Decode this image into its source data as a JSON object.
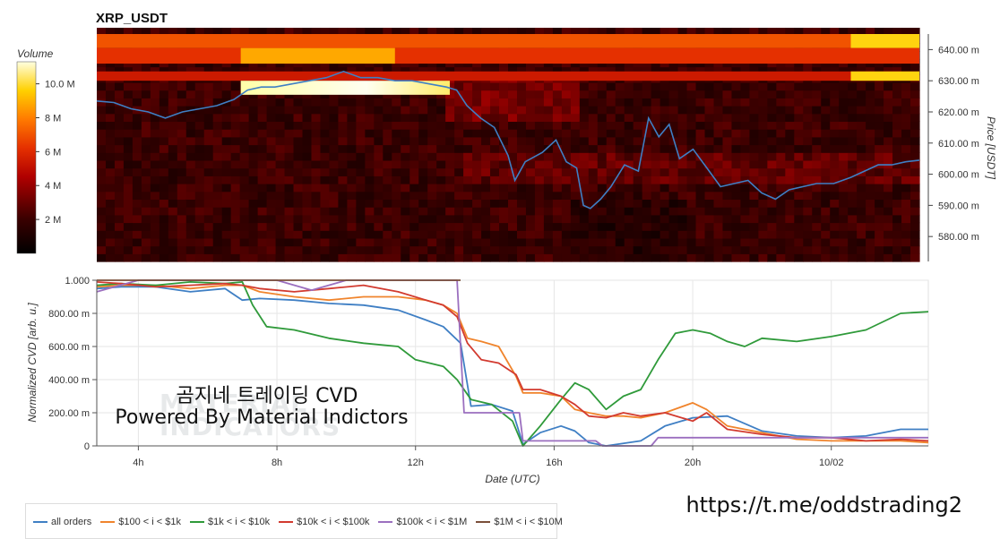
{
  "title": "XRP_USDT",
  "annotations": {
    "line1": "곰지네 트레이딩 CVD",
    "line2": "Powered By Material Indictors",
    "watermark": "MATERIAL\nINDICATORS",
    "url": "https://t.me/oddstrading2"
  },
  "chart_data": [
    {
      "type": "heatmap",
      "ylabel": "Price [USDT]",
      "ylim": [
        572,
        645
      ],
      "y_ticks": [
        "580.00 m",
        "590.00 m",
        "600.00 m",
        "610.00 m",
        "620.00 m",
        "630.00 m",
        "640.00 m"
      ],
      "y_tick_values": [
        580,
        590,
        600,
        610,
        620,
        630,
        640
      ],
      "colorbar": {
        "title": "Volume",
        "ticks": [
          "2 M",
          "4 M",
          "6 M",
          "8 M",
          "10.0 M"
        ],
        "tick_values": [
          2,
          4,
          6,
          8,
          10
        ],
        "range": [
          0,
          11.3
        ]
      },
      "x_hours_range": [
        2.8,
        26.8
      ],
      "price_line": {
        "color": "#3f7fc4",
        "x_hours": [
          2.8,
          3.3,
          3.8,
          4.3,
          4.8,
          5.3,
          5.8,
          6.3,
          6.8,
          7.2,
          7.6,
          8.0,
          8.5,
          9.0,
          9.5,
          10.0,
          10.5,
          11.0,
          11.5,
          12.0,
          12.5,
          13.0,
          13.3,
          13.6,
          14.0,
          14.4,
          14.8,
          15.0,
          15.3,
          15.8,
          16.2,
          16.5,
          16.8,
          17.0,
          17.2,
          17.5,
          17.8,
          18.2,
          18.6,
          18.9,
          19.2,
          19.5,
          19.8,
          20.2,
          20.6,
          21.0,
          21.4,
          21.8,
          22.2,
          22.6,
          23.0,
          23.4,
          23.8,
          24.3,
          24.8,
          25.2,
          25.6,
          26.0,
          26.4,
          26.8
        ],
        "values": [
          623.5,
          623,
          621,
          620,
          618,
          620,
          621,
          622,
          624,
          627,
          628,
          628,
          629,
          630,
          631,
          633,
          631,
          631,
          630,
          630,
          629,
          628,
          627,
          622,
          618,
          615,
          606,
          598,
          604,
          607,
          611,
          604,
          602,
          590,
          589,
          592,
          596,
          603,
          601,
          618,
          612,
          616,
          605,
          608,
          602,
          596,
          597,
          598,
          594,
          592,
          595,
          596,
          597,
          597,
          599,
          601,
          603,
          603,
          604,
          604.5
        ]
      },
      "bands": [
        {
          "price": [
            640.5,
            645
          ],
          "intensity": 0.62,
          "x_start_hours": 2.8,
          "x_end_hours": 26.8,
          "highlight_start_hours": 24.8,
          "highlight_intensity": 0.86
        },
        {
          "price": [
            635.5,
            640.5
          ],
          "intensity": 0.55,
          "x_start_hours": 2.8,
          "x_end_hours": 26.8,
          "highlight_start_hours": 7.0,
          "highlight_end_hours": 11.5,
          "highlight_intensity": 0.78
        },
        {
          "price": [
            630,
            633
          ],
          "intensity": 0.48,
          "x_start_hours": 2.8,
          "x_end_hours": 26.8,
          "highlight_start_hours": 24.8,
          "highlight_intensity": 0.86
        },
        {
          "price": [
            625.5,
            630
          ],
          "intensity": 0.96,
          "x_start_hours": 7.0,
          "x_end_hours": 13.1
        }
      ]
    },
    {
      "type": "line",
      "xlabel": "Date (UTC)",
      "ylabel": "Normalized CVD [arb. u.]",
      "ylim": [
        0,
        1
      ],
      "x_tick_labels": [
        "4h",
        "8h",
        "12h",
        "16h",
        "20h",
        "10/02"
      ],
      "x_tick_hours": [
        4,
        8,
        12,
        16,
        20,
        24
      ],
      "x_hours_range": [
        2.8,
        26.8
      ],
      "y_ticks": [
        "0",
        "200.00 m",
        "400.00 m",
        "600.00 m",
        "800.00 m",
        "1.000"
      ],
      "y_tick_values": [
        0,
        0.2,
        0.4,
        0.6,
        0.8,
        1.0
      ],
      "grid": true,
      "legend_position": "bottom-left",
      "series": [
        {
          "name": "all orders",
          "color": "#3f7fc4",
          "x_hours": [
            2.8,
            3.5,
            4.5,
            5.5,
            6.5,
            7.0,
            7.5,
            8.5,
            9.5,
            10.5,
            11.5,
            12.3,
            12.8,
            13.3,
            13.6,
            14.2,
            14.8,
            15.1,
            15.6,
            16.2,
            16.6,
            17.0,
            17.5,
            18.5,
            19.2,
            20.0,
            21.0,
            22.0,
            23.0,
            24.0,
            25.0,
            26.0,
            26.8
          ],
          "values": [
            0.95,
            0.96,
            0.96,
            0.93,
            0.95,
            0.88,
            0.89,
            0.88,
            0.86,
            0.85,
            0.82,
            0.76,
            0.72,
            0.62,
            0.24,
            0.25,
            0.21,
            0.01,
            0.08,
            0.12,
            0.09,
            0.02,
            0.0,
            0.03,
            0.12,
            0.17,
            0.18,
            0.09,
            0.06,
            0.05,
            0.06,
            0.1,
            0.1
          ]
        },
        {
          "name": "$100 < i < $1k",
          "color": "#f0842c",
          "x_hours": [
            2.8,
            3.5,
            4.5,
            5.5,
            6.5,
            7.0,
            7.5,
            8.5,
            9.5,
            10.5,
            11.5,
            12.3,
            12.8,
            13.2,
            13.5,
            13.9,
            14.4,
            14.9,
            15.1,
            15.6,
            16.2,
            16.6,
            17.0,
            17.5,
            18.0,
            18.5,
            19.2,
            20.0,
            20.4,
            21.0,
            22.0,
            23.0,
            24.0,
            25.0,
            26.0,
            26.8
          ],
          "values": [
            0.96,
            0.97,
            0.97,
            0.95,
            0.97,
            0.97,
            0.93,
            0.9,
            0.88,
            0.9,
            0.9,
            0.88,
            0.85,
            0.8,
            0.65,
            0.63,
            0.6,
            0.42,
            0.32,
            0.32,
            0.3,
            0.22,
            0.2,
            0.18,
            0.18,
            0.17,
            0.2,
            0.26,
            0.22,
            0.12,
            0.08,
            0.04,
            0.03,
            0.03,
            0.03,
            0.02
          ]
        },
        {
          "name": "$1k < i < $10k",
          "color": "#2f9a3a",
          "x_hours": [
            2.8,
            3.5,
            4.5,
            5.5,
            6.5,
            7.0,
            7.3,
            7.7,
            8.5,
            9.5,
            10.5,
            11.5,
            12.0,
            12.8,
            13.2,
            13.6,
            14.2,
            14.8,
            15.1,
            15.6,
            16.2,
            16.6,
            17.0,
            17.5,
            18.0,
            18.5,
            19.0,
            19.5,
            20.0,
            20.5,
            21.0,
            21.5,
            22.0,
            23.0,
            24.0,
            25.0,
            26.0,
            26.8
          ],
          "values": [
            0.97,
            0.98,
            0.97,
            0.99,
            0.98,
            0.99,
            0.85,
            0.72,
            0.7,
            0.65,
            0.62,
            0.6,
            0.52,
            0.48,
            0.4,
            0.28,
            0.25,
            0.15,
            0.0,
            0.12,
            0.28,
            0.38,
            0.34,
            0.22,
            0.3,
            0.34,
            0.52,
            0.68,
            0.7,
            0.68,
            0.63,
            0.6,
            0.65,
            0.63,
            0.66,
            0.7,
            0.8,
            0.81
          ]
        },
        {
          "name": "$10k < i < $100k",
          "color": "#d23a2f",
          "x_hours": [
            2.8,
            3.5,
            4.5,
            5.5,
            6.5,
            7.0,
            7.5,
            8.5,
            9.5,
            10.5,
            11.5,
            12.3,
            12.8,
            13.2,
            13.5,
            13.9,
            14.4,
            14.9,
            15.1,
            15.6,
            16.2,
            16.6,
            17.0,
            17.5,
            18.0,
            18.5,
            19.2,
            20.0,
            20.4,
            21.0,
            22.0,
            23.0,
            24.0,
            25.0,
            26.0,
            26.8
          ],
          "values": [
            0.99,
            0.98,
            0.96,
            0.97,
            0.98,
            0.97,
            0.95,
            0.93,
            0.95,
            0.97,
            0.93,
            0.88,
            0.85,
            0.78,
            0.62,
            0.52,
            0.5,
            0.43,
            0.34,
            0.34,
            0.3,
            0.25,
            0.18,
            0.17,
            0.2,
            0.18,
            0.2,
            0.15,
            0.2,
            0.1,
            0.07,
            0.05,
            0.05,
            0.03,
            0.04,
            0.03
          ]
        },
        {
          "name": "$100k < i < $1M",
          "color": "#9b6fbf",
          "x_hours": [
            2.8,
            4.0,
            6.0,
            8.0,
            9.0,
            10.0,
            12.0,
            13.2,
            13.4,
            15.0,
            15.1,
            16.0,
            16.5,
            17.2,
            17.4,
            18.8,
            19.0,
            23.0,
            23.2,
            26.8
          ],
          "values": [
            0.93,
            1.0,
            1.0,
            1.0,
            0.94,
            1.0,
            1.0,
            1.0,
            0.2,
            0.2,
            0.03,
            0.03,
            0.03,
            0.03,
            0.0,
            0.0,
            0.05,
            0.05,
            0.05,
            0.05
          ]
        },
        {
          "name": "$1M < i < $10M",
          "color": "#7a4f3a",
          "x_hours": [
            2.8,
            13.3
          ],
          "values": [
            1.0,
            1.0
          ]
        }
      ]
    }
  ]
}
